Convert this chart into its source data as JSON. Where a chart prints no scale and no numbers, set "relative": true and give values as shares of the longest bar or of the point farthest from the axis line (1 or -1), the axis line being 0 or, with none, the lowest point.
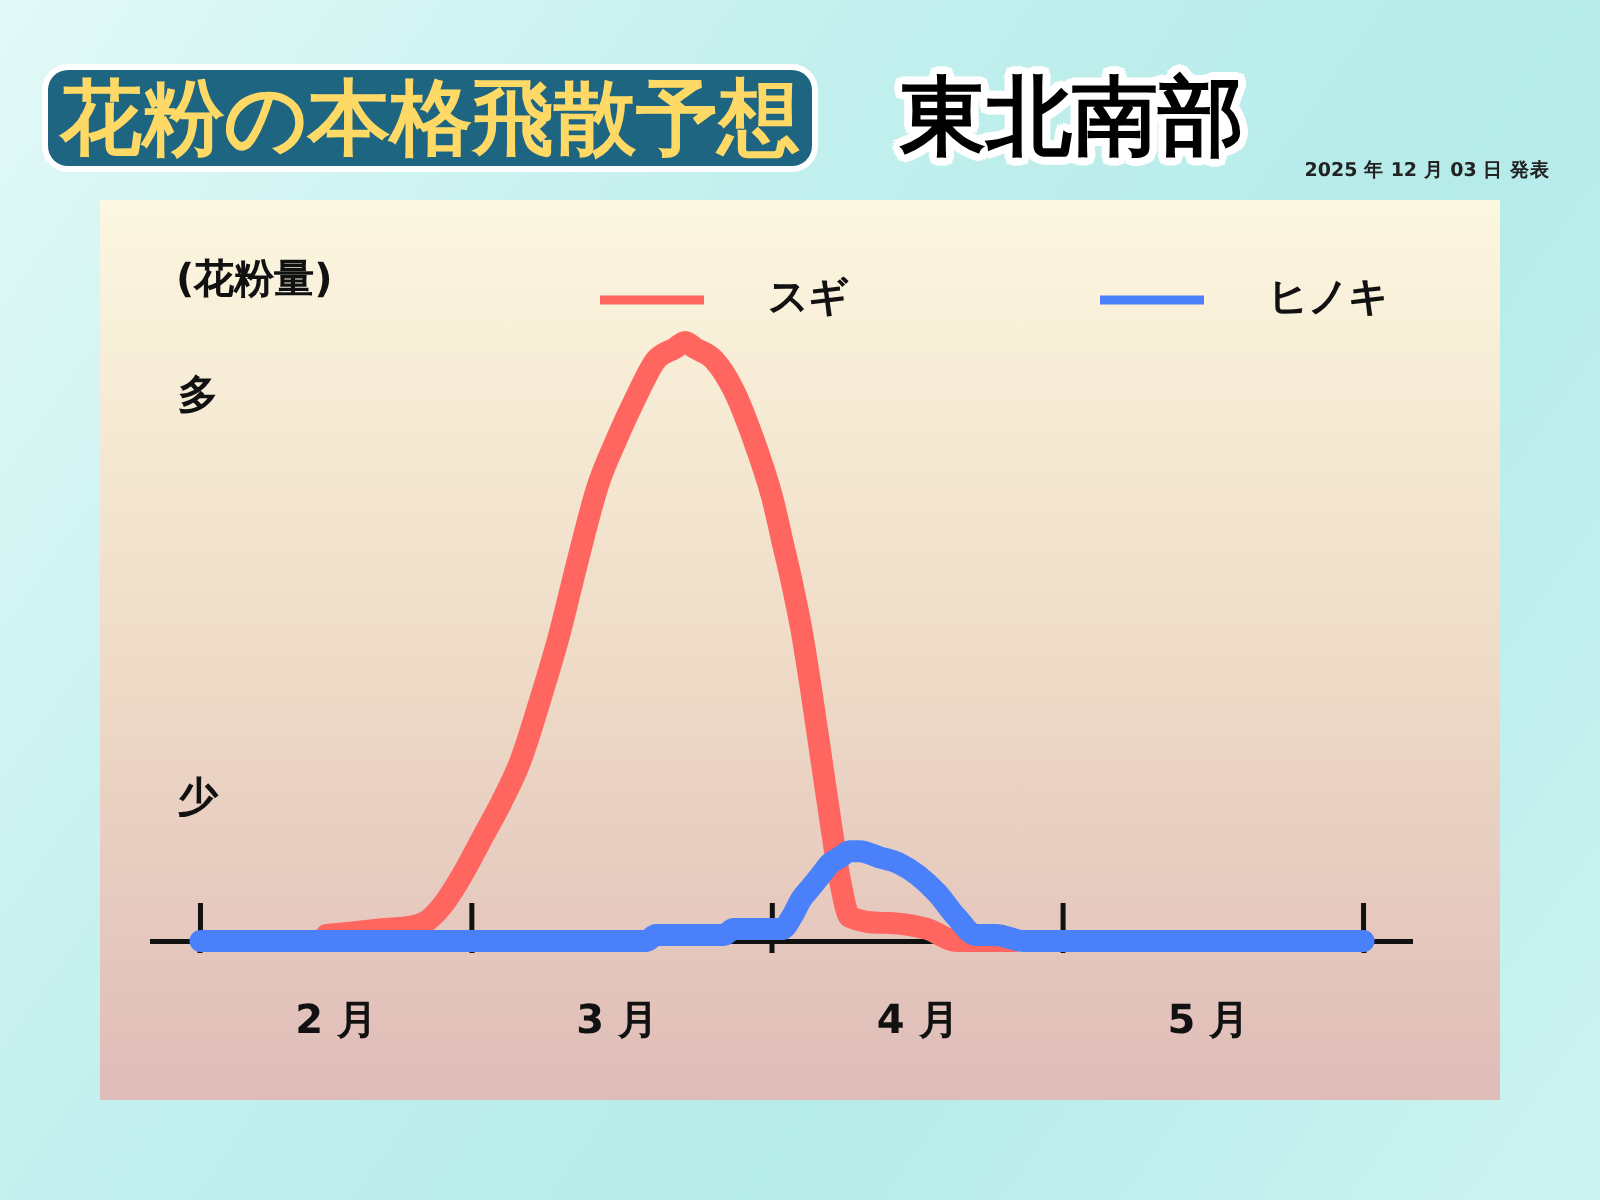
{
  "chart_data": {
    "type": "line",
    "title": "花粉の本格飛散予想",
    "subtitle": "東北南部",
    "ylabel": "(花粉量)",
    "annotations": [
      "多",
      "少",
      "2025 年 12 月 03 日 発表"
    ],
    "relative": true,
    "legend": "top",
    "xlim": [
      "--01-27",
      "--06-06"
    ],
    "xticks": [
      {
        "value": "--02-01",
        "label": null
      },
      {
        "value": "--02-15",
        "label": "2 月"
      },
      {
        "value": "--03-01",
        "label": null
      },
      {
        "value": "--03-16",
        "label": "3 月"
      },
      {
        "value": "--04-01",
        "label": null
      },
      {
        "value": "--04-16",
        "label": "4 月"
      },
      {
        "value": "--05-01",
        "label": null
      },
      {
        "value": "--05-16",
        "label": "5 月"
      },
      {
        "value": "--06-01",
        "label": null
      }
    ],
    "series": [
      {
        "name": "スギ",
        "color": "#ff6660",
        "x": [
          "--02-14",
          "--02-20",
          "--02-24",
          "--02-26",
          "--02-28",
          "--03-02",
          "--03-04",
          "--03-06",
          "--03-08",
          "--03-10",
          "--03-12",
          "--03-14",
          "--03-16",
          "--03-18",
          "--03-20",
          "--03-22",
          "--03-23",
          "--03-24",
          "--03-26",
          "--03-28",
          "--03-30",
          "--04-01",
          "--04-02",
          "--04-03",
          "--04-04",
          "--04-05",
          "--04-06",
          "--04-07",
          "--04-08",
          "--04-09",
          "--04-13",
          "--04-17",
          "--04-20",
          "--04-26"
        ],
        "values": [
          0.01,
          0.02,
          0.03,
          0.06,
          0.11,
          0.17,
          0.23,
          0.3,
          0.4,
          0.51,
          0.64,
          0.76,
          0.84,
          0.91,
          0.97,
          0.99,
          1,
          0.99,
          0.97,
          0.92,
          0.84,
          0.74,
          0.67,
          0.6,
          0.52,
          0.42,
          0.31,
          0.2,
          0.1,
          0.04,
          0.03,
          0.02,
          0,
          0
        ]
      },
      {
        "name": "ヒノキ",
        "color": "#4a80f9",
        "x": [
          "--02-01",
          "--03-19",
          "--03-20",
          "--03-27",
          "--03-28",
          "--04-01",
          "--04-02",
          "--04-03",
          "--04-04",
          "--04-05",
          "--04-06",
          "--04-07",
          "--04-08",
          "--04-09",
          "--04-10",
          "--04-12",
          "--04-14",
          "--04-16",
          "--04-18",
          "--04-20",
          "--04-22",
          "--04-24",
          "--04-27",
          "--06-01"
        ],
        "values": [
          0,
          0,
          0.01,
          0.01,
          0.02,
          0.02,
          0.02,
          0.04,
          0.07,
          0.09,
          0.11,
          0.13,
          0.14,
          0.15,
          0.15,
          0.14,
          0.13,
          0.11,
          0.08,
          0.04,
          0.01,
          0.01,
          0,
          0
        ]
      }
    ]
  }
}
